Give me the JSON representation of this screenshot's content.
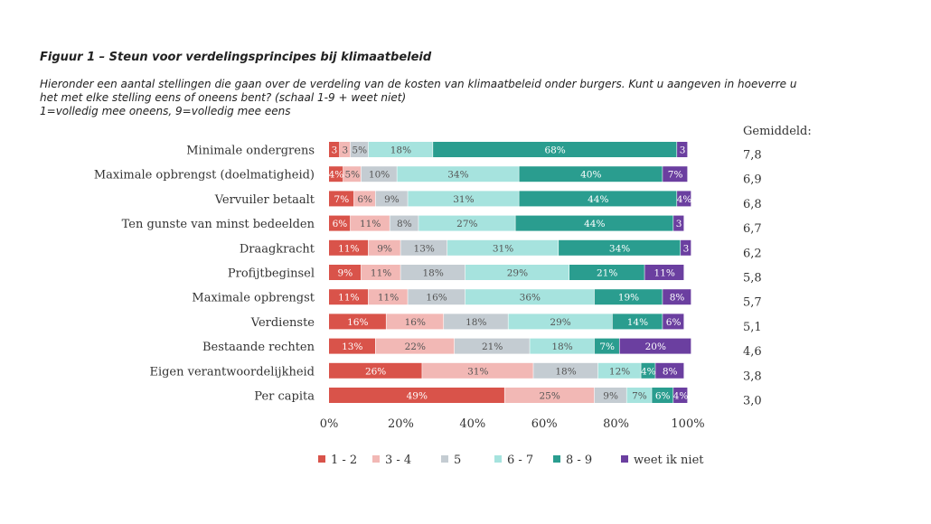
{
  "chart_data": {
    "type": "bar",
    "orientation": "horizontal",
    "stacked": true,
    "title": "Figuur 1 – Steun voor verdelingsprincipes bij klimaatbeleid",
    "subtitle_lines": [
      "Hieronder een aantal stellingen die gaan over de verdeling van de kosten van klimaatbeleid onder burgers. Kunt u aangeven in hoeverre u",
      "het met elke stelling eens of oneens bent? (schaal 1-9 + weet niet)",
      "1=volledig mee oneens, 9=volledig mee eens"
    ],
    "categories": [
      "Minimale ondergrens",
      "Maximale opbrengst (doelmatigheid)",
      "Vervuiler betaalt",
      "Ten gunste van minst bedeelden",
      "Draagkracht",
      "Profijtbeginsel",
      "Maximale opbrengst",
      "Verdienste",
      "Bestaande rechten",
      "Eigen verantwoordelijkheid",
      "Per capita"
    ],
    "series": [
      {
        "name": "1 - 2",
        "color": "#d9534a",
        "values": [
          3,
          4,
          7,
          6,
          11,
          9,
          11,
          16,
          13,
          26,
          49
        ]
      },
      {
        "name": "3 - 4",
        "color": "#f2b8b5",
        "values": [
          3,
          5,
          6,
          11,
          9,
          11,
          11,
          16,
          22,
          31,
          25
        ]
      },
      {
        "name": "5",
        "color": "#c4ccd2",
        "values": [
          5,
          10,
          9,
          8,
          13,
          18,
          16,
          18,
          21,
          18,
          9
        ]
      },
      {
        "name": "6 - 7",
        "color": "#a6e3de",
        "values": [
          18,
          34,
          31,
          27,
          31,
          29,
          36,
          29,
          18,
          12,
          7
        ]
      },
      {
        "name": "8 - 9",
        "color": "#2a9d8f",
        "values": [
          68,
          40,
          44,
          44,
          34,
          21,
          19,
          14,
          7,
          4,
          6
        ]
      },
      {
        "name": "weet ik niet",
        "color": "#6b3fa0",
        "values": [
          3,
          7,
          4,
          3,
          3,
          11,
          8,
          6,
          20,
          8,
          4
        ]
      }
    ],
    "labels": [
      [
        "3",
        "3",
        "5%",
        "18%",
        "68%",
        "3"
      ],
      [
        "4%",
        "5%",
        "10%",
        "34%",
        "40%",
        "7%"
      ],
      [
        "7%",
        "6%",
        "9%",
        "31%",
        "44%",
        "4%"
      ],
      [
        "6%",
        "11%",
        "8%",
        "27%",
        "44%",
        "3"
      ],
      [
        "11%",
        "9%",
        "13%",
        "31%",
        "34%",
        "3"
      ],
      [
        "9%",
        "11%",
        "18%",
        "29%",
        "21%",
        "11%"
      ],
      [
        "11%",
        "11%",
        "16%",
        "36%",
        "19%",
        "8%"
      ],
      [
        "16%",
        "16%",
        "18%",
        "29%",
        "14%",
        "6%"
      ],
      [
        "13%",
        "22%",
        "21%",
        "18%",
        "7%",
        "20%"
      ],
      [
        "26%",
        "31%",
        "18%",
        "12%",
        "4%",
        "8%"
      ],
      [
        "49%",
        "25%",
        "9%",
        "7%",
        "6%",
        "4%"
      ]
    ],
    "average_header": "Gemiddeld:",
    "averages": [
      "7,8",
      "6,9",
      "6,8",
      "6,7",
      "6,2",
      "5,8",
      "5,7",
      "5,1",
      "4,6",
      "3,8",
      "3,0"
    ],
    "xlim": [
      0,
      100
    ],
    "x_ticks": [
      "0%",
      "20%",
      "40%",
      "60%",
      "80%",
      "100%"
    ],
    "legend_position": "bottom",
    "grid": false
  }
}
